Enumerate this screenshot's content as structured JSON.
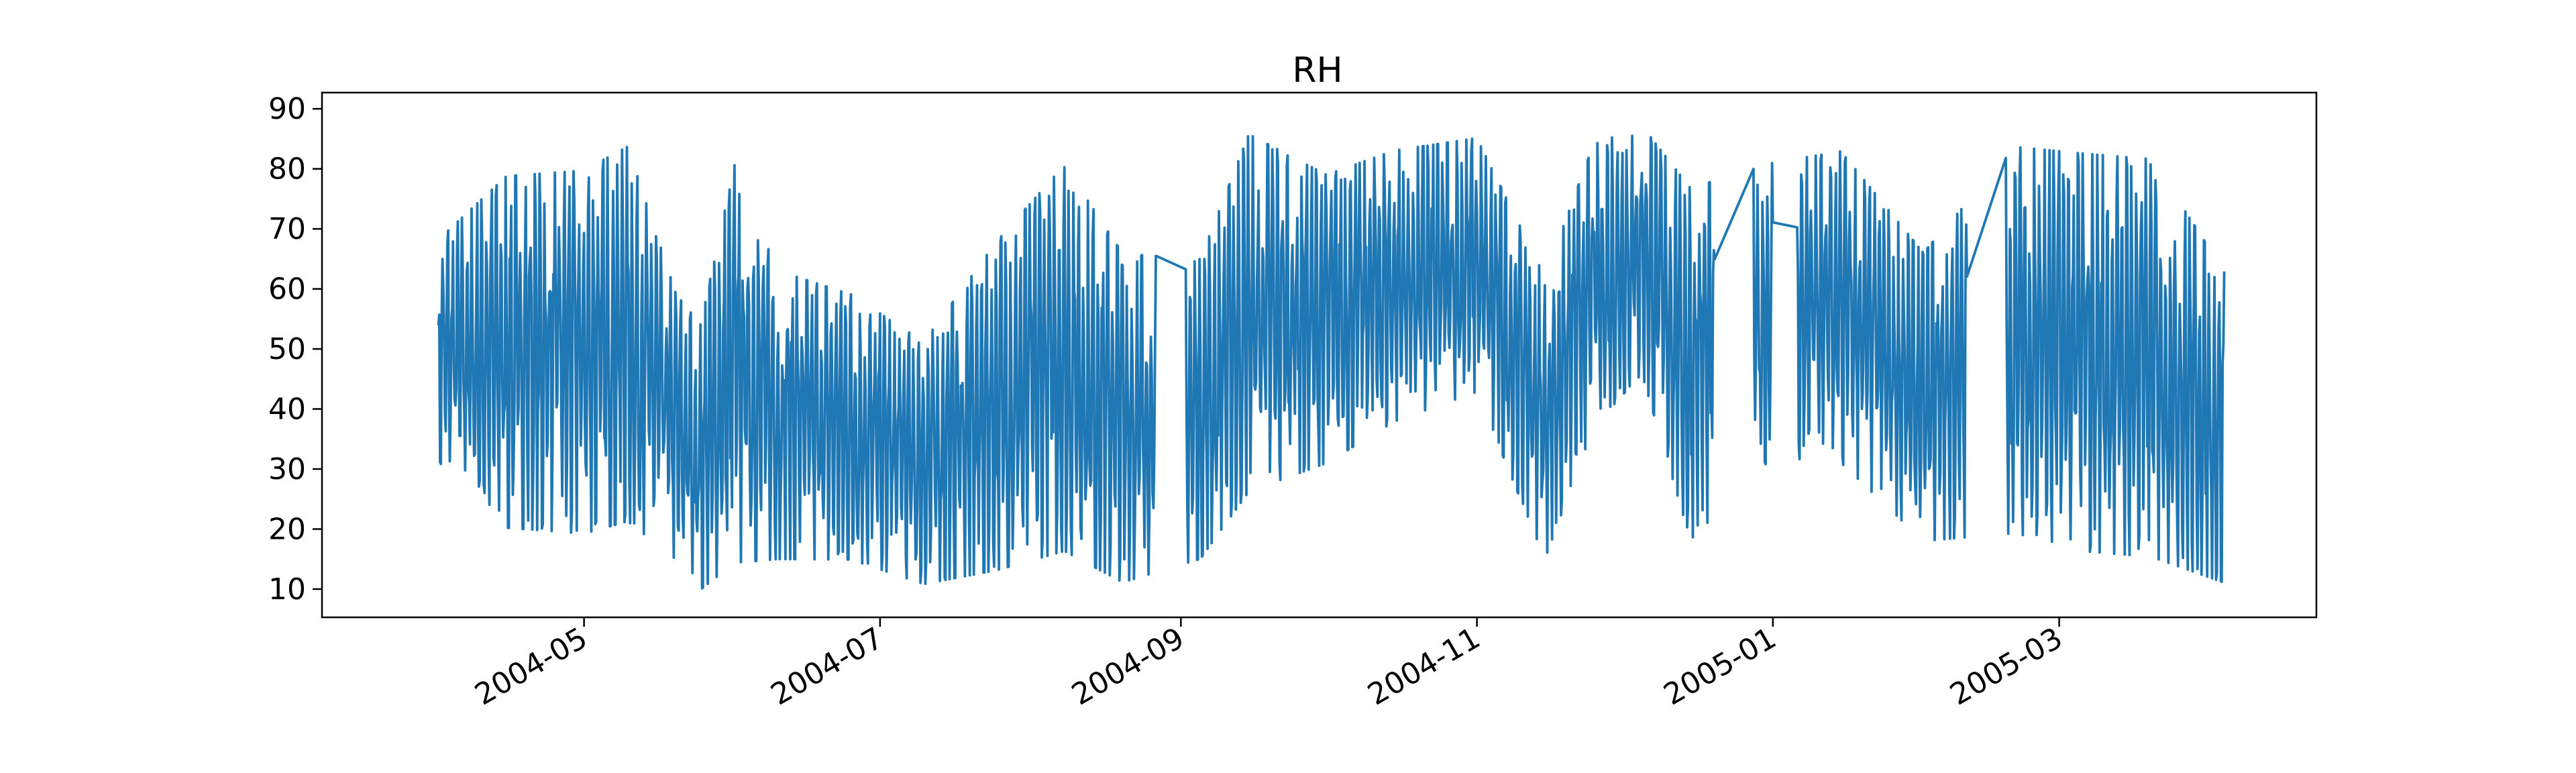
{
  "chart_data": {
    "type": "line",
    "title": "RH",
    "xlabel": "",
    "ylabel": "",
    "x_range": [
      "2004-03-08",
      "2005-04-23"
    ],
    "ylim": [
      5.3,
      92.7
    ],
    "x_ticks": [
      "2004-05",
      "2004-07",
      "2004-09",
      "2004-11",
      "2005-01",
      "2005-03"
    ],
    "y_ticks": [
      10,
      20,
      30,
      40,
      50,
      60,
      70,
      80,
      90
    ],
    "grid": false,
    "legend": "none",
    "series": [
      {
        "color": "#1f77b4",
        "x_start": "2004-04-01",
        "x_end": "2005-04-04",
        "samples_per_day": 6,
        "gaps": [
          {
            "from": "2004-08-27",
            "to": "2004-09-02"
          },
          {
            "from": "2004-12-20",
            "to": "2004-12-28"
          },
          {
            "from": "2005-01-01",
            "to": "2005-01-06"
          },
          {
            "from": "2005-02-10",
            "to": "2005-02-18"
          }
        ],
        "envelope": [
          {
            "date": "2004-04-01",
            "min": 30,
            "max": 69
          },
          {
            "date": "2004-04-15",
            "min": 19,
            "max": 80
          },
          {
            "date": "2004-05-01",
            "min": 18,
            "max": 81
          },
          {
            "date": "2004-05-10",
            "min": 20,
            "max": 85
          },
          {
            "date": "2004-05-20",
            "min": 14,
            "max": 60
          },
          {
            "date": "2004-05-25",
            "min": 9,
            "max": 55
          },
          {
            "date": "2004-06-01",
            "min": 13,
            "max": 82
          },
          {
            "date": "2004-06-10",
            "min": 14,
            "max": 64
          },
          {
            "date": "2004-06-25",
            "min": 14,
            "max": 60
          },
          {
            "date": "2004-07-10",
            "min": 10,
            "max": 52
          },
          {
            "date": "2004-07-25",
            "min": 12,
            "max": 69
          },
          {
            "date": "2004-08-08",
            "min": 15,
            "max": 82
          },
          {
            "date": "2004-08-20",
            "min": 10,
            "max": 67
          },
          {
            "date": "2004-09-05",
            "min": 14,
            "max": 66
          },
          {
            "date": "2004-09-15",
            "min": 25,
            "max": 87
          },
          {
            "date": "2004-10-01",
            "min": 30,
            "max": 80
          },
          {
            "date": "2004-10-15",
            "min": 37,
            "max": 84
          },
          {
            "date": "2004-11-01",
            "min": 42,
            "max": 86
          },
          {
            "date": "2004-11-15",
            "min": 14,
            "max": 63
          },
          {
            "date": "2004-11-25",
            "min": 36,
            "max": 85
          },
          {
            "date": "2004-12-05",
            "min": 45,
            "max": 88
          },
          {
            "date": "2004-12-15",
            "min": 17,
            "max": 78
          },
          {
            "date": "2005-01-01",
            "min": 31,
            "max": 82
          },
          {
            "date": "2005-01-15",
            "min": 30,
            "max": 84
          },
          {
            "date": "2005-02-01",
            "min": 17,
            "max": 67
          },
          {
            "date": "2005-02-20",
            "min": 18,
            "max": 85
          },
          {
            "date": "2005-03-05",
            "min": 15,
            "max": 84
          },
          {
            "date": "2005-03-20",
            "min": 14,
            "max": 83
          },
          {
            "date": "2005-04-04",
            "min": 10,
            "max": 64
          }
        ]
      }
    ]
  }
}
